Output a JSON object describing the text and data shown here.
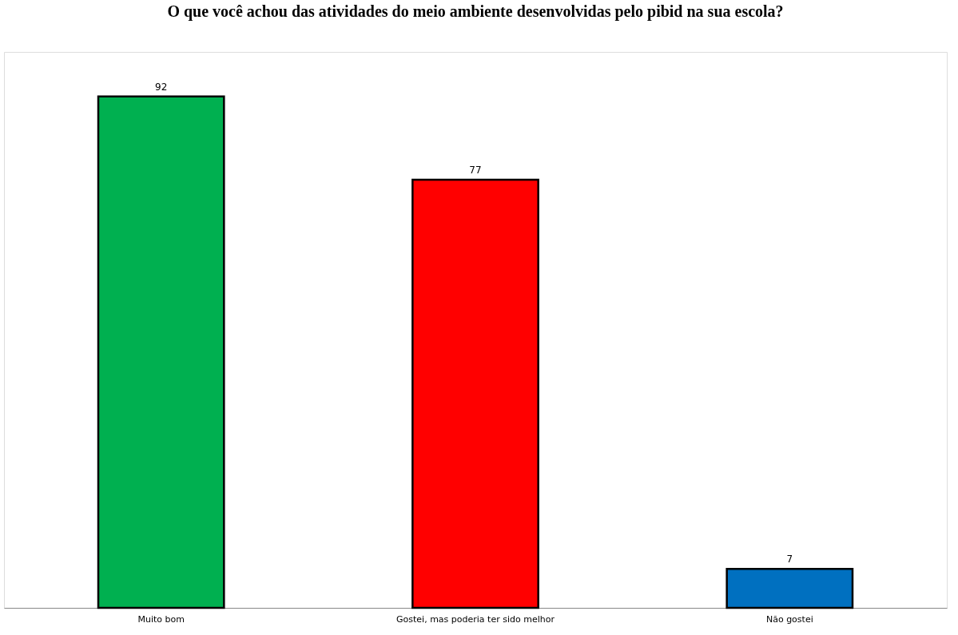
{
  "chart_data": {
    "type": "bar",
    "title": "O que você achou das atividades do meio ambiente desenvolvidas pelo pibid na sua escola?",
    "categories": [
      "Muito bom",
      "Gostei, mas poderia ter sido melhor",
      "Não gostei"
    ],
    "values": [
      92,
      77,
      7
    ],
    "colors": [
      "#00b050",
      "#ff0000",
      "#0070c0"
    ],
    "data_labels": true,
    "grid": false,
    "tick_labels": "x"
  }
}
